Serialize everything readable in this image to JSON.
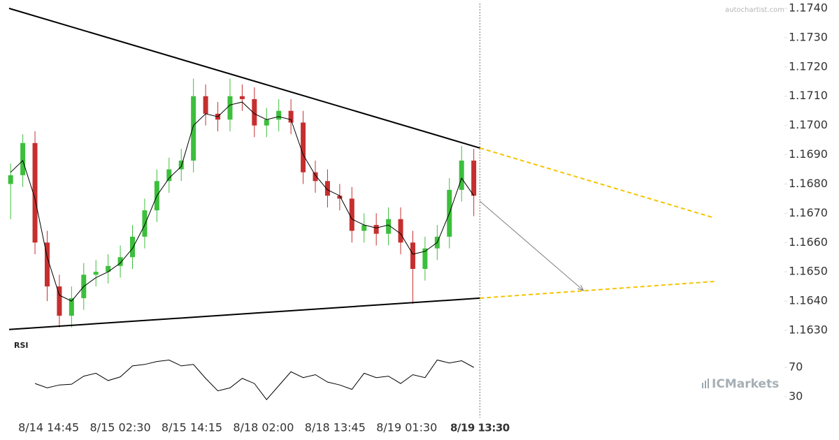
{
  "chart_data": {
    "type": "candlestick",
    "x": [
      0,
      8,
      16,
      24,
      32,
      40,
      48,
      56,
      64,
      72,
      80,
      88,
      96,
      104,
      112,
      120,
      128,
      136,
      144,
      152,
      160,
      168,
      176,
      184,
      192,
      200,
      208,
      216,
      224,
      232,
      240,
      248,
      256,
      264,
      272,
      280,
      288,
      296,
      304
    ],
    "open": [
      1.168,
      1.1683,
      1.1694,
      1.166,
      1.1645,
      1.1635,
      1.1641,
      1.1649,
      1.165,
      1.1652,
      1.1655,
      1.1662,
      1.1671,
      1.1681,
      1.1685,
      1.1688,
      1.171,
      1.1704,
      1.1702,
      1.171,
      1.1709,
      1.17,
      1.1702,
      1.1705,
      1.1701,
      1.1684,
      1.1681,
      1.1676,
      1.1675,
      1.1664,
      1.1666,
      1.1663,
      1.1668,
      1.166,
      1.1651,
      1.1658,
      1.1662,
      1.1678,
      1.1688
    ],
    "high": [
      1.1687,
      1.1697,
      1.1698,
      1.1664,
      1.1649,
      1.1645,
      1.1653,
      1.1654,
      1.1656,
      1.1659,
      1.1666,
      1.1675,
      1.1685,
      1.1689,
      1.1692,
      1.1716,
      1.1714,
      1.1708,
      1.1716,
      1.1714,
      1.1713,
      1.1706,
      1.1709,
      1.1709,
      1.1705,
      1.1688,
      1.1685,
      1.168,
      1.1679,
      1.167,
      1.167,
      1.1672,
      1.1672,
      1.1664,
      1.1662,
      1.1666,
      1.1682,
      1.1693,
      1.1692
    ],
    "low": [
      1.1668,
      1.1679,
      1.1656,
      1.164,
      1.1631,
      1.1631,
      1.1637,
      1.1645,
      1.1646,
      1.1648,
      1.1651,
      1.1658,
      1.1667,
      1.1677,
      1.1681,
      1.1684,
      1.17,
      1.1698,
      1.1698,
      1.1705,
      1.1696,
      1.1696,
      1.1698,
      1.1697,
      1.168,
      1.1677,
      1.1672,
      1.1671,
      1.166,
      1.166,
      1.1659,
      1.1659,
      1.1656,
      1.1639,
      1.1647,
      1.1654,
      1.1658,
      1.1674,
      1.1669
    ],
    "close": [
      1.1683,
      1.1694,
      1.166,
      1.1645,
      1.1635,
      1.1641,
      1.1649,
      1.165,
      1.1652,
      1.1655,
      1.1662,
      1.1671,
      1.1681,
      1.1685,
      1.1688,
      1.171,
      1.1704,
      1.1702,
      1.171,
      1.1709,
      1.17,
      1.1702,
      1.1705,
      1.1701,
      1.1684,
      1.1681,
      1.1676,
      1.1675,
      1.1664,
      1.1666,
      1.1663,
      1.1668,
      1.166,
      1.1651,
      1.1658,
      1.1662,
      1.1678,
      1.1688,
      1.1676
    ],
    "up_color": "#3cbf3c",
    "down_color": "#c62f2f",
    "moving_average": {
      "color": "#000000",
      "values": [
        1.1684,
        1.1688,
        1.1675,
        1.1655,
        1.1642,
        1.164,
        1.1645,
        1.1648,
        1.165,
        1.1653,
        1.1658,
        1.1666,
        1.1676,
        1.1682,
        1.1686,
        1.17,
        1.1704,
        1.1703,
        1.1707,
        1.1708,
        1.1704,
        1.1702,
        1.1703,
        1.1702,
        1.169,
        1.1683,
        1.1678,
        1.1676,
        1.1668,
        1.1666,
        1.1665,
        1.1666,
        1.1663,
        1.1656,
        1.1657,
        1.166,
        1.167,
        1.1682,
        1.1676
      ]
    },
    "trend_lines": [
      {
        "color": "#000000",
        "x": [
          -1,
          308
        ],
        "values": [
          1.174,
          1.16923
        ]
      },
      {
        "color": "#000000",
        "x": [
          -1,
          308
        ],
        "values": [
          1.16303,
          1.1641
        ]
      }
    ],
    "projections": [
      {
        "color": "#f5c400",
        "x": [
          308,
          462
        ],
        "values": [
          1.16923,
          1.16684
        ]
      },
      {
        "color": "#f5c400",
        "x": [
          308,
          462
        ],
        "values": [
          1.1641,
          1.16467
        ]
      }
    ],
    "forecast_arrow": {
      "color": "#808080",
      "x": [
        308,
        376
      ],
      "values": [
        1.16741,
        1.16436
      ]
    },
    "xlim": [
      -1,
      507
    ],
    "xticks": [
      {
        "value": 25,
        "label": "8/14 14:45"
      },
      {
        "value": 72,
        "label": "8/15 02:30"
      },
      {
        "value": 119,
        "label": "8/15 14:15"
      },
      {
        "value": 166,
        "label": "8/18 02:00"
      },
      {
        "value": 213,
        "label": "8/18 13:45"
      },
      {
        "value": 260,
        "label": "8/19 01:30"
      },
      {
        "value": 308,
        "label": "8/19 13:30"
      }
    ],
    "ylim": [
      1.163,
      1.174
    ],
    "yticks": [
      {
        "value": 1.174,
        "label": "1.1740"
      },
      {
        "value": 1.173,
        "label": "1.1730"
      },
      {
        "value": 1.172,
        "label": "1.1720"
      },
      {
        "value": 1.171,
        "label": "1.1710"
      },
      {
        "value": 1.17,
        "label": "1.1700"
      },
      {
        "value": 1.169,
        "label": "1.1690"
      },
      {
        "value": 1.168,
        "label": "1.1680"
      },
      {
        "value": 1.167,
        "label": "1.1670"
      },
      {
        "value": 1.166,
        "label": "1.1660"
      },
      {
        "value": 1.165,
        "label": "1.1650"
      },
      {
        "value": 1.164,
        "label": "1.1640"
      },
      {
        "value": 1.163,
        "label": "1.1630"
      }
    ],
    "rsi": {
      "label": "RSI",
      "color": "#000000",
      "values": [
        null,
        null,
        48,
        42,
        46,
        47,
        58,
        62,
        52,
        57,
        72,
        74,
        78,
        80,
        72,
        74,
        55,
        38,
        42,
        55,
        48,
        26,
        45,
        64,
        56,
        60,
        50,
        46,
        40,
        62,
        56,
        58,
        48,
        60,
        56,
        80,
        76,
        79,
        70
      ],
      "ylim": [
        0,
        100
      ],
      "yticks": [
        70,
        30
      ]
    }
  },
  "watermark": "autochartist.com",
  "logo": "ICMarkets"
}
